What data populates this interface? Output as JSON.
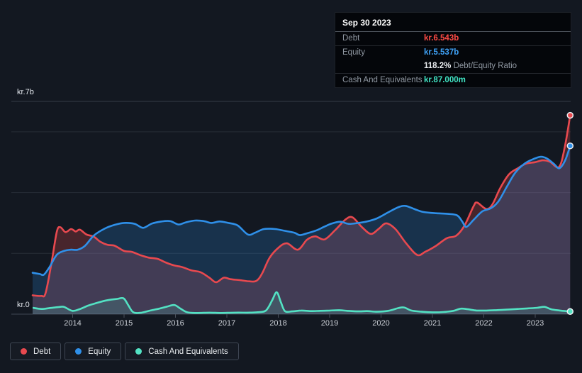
{
  "tooltip": {
    "date": "Sep 30 2023",
    "debt_label": "Debt",
    "debt_value": "kr.6.543b",
    "debt_color": "#ff4b45",
    "equity_label": "Equity",
    "equity_value": "kr.5.537b",
    "equity_color": "#3fa2f7",
    "ratio_pct": "118.2%",
    "ratio_text": "Debt/Equity Ratio",
    "cash_label": "Cash And Equivalents",
    "cash_value": "kr.87.000m",
    "cash_color": "#40e2c2"
  },
  "axis": {
    "y_top": "kr.7b",
    "y_bottom": "kr.0"
  },
  "legend": {
    "items": [
      {
        "label": "Debt",
        "color": "#e8494f"
      },
      {
        "label": "Equity",
        "color": "#2f90e9"
      },
      {
        "label": "Cash And Equivalents",
        "color": "#53e2c3"
      }
    ]
  },
  "chart_data": {
    "type": "area",
    "x_unit": "decimal_year",
    "xlim": [
      2013.0,
      2023.9
    ],
    "ylim": [
      0,
      7
    ],
    "y_unit": "kr billions",
    "gridlines": {
      "values": [
        7,
        6,
        4,
        2,
        0
      ]
    },
    "x_ticks": [
      2014,
      2015,
      2016,
      2017,
      2018,
      2019,
      2020,
      2021,
      2022,
      2023
    ],
    "series": [
      {
        "id": "debt",
        "name": "Debt",
        "color": "#e8494f",
        "fill": "rgba(231,74,80,0.25)",
        "last_label": "kr.6.543b",
        "points": [
          [
            2013.22,
            0.62
          ],
          [
            2013.39,
            0.6
          ],
          [
            2013.47,
            0.68
          ],
          [
            2013.58,
            1.6
          ],
          [
            2013.69,
            2.7
          ],
          [
            2013.76,
            2.86
          ],
          [
            2013.86,
            2.7
          ],
          [
            2013.97,
            2.8
          ],
          [
            2014.06,
            2.72
          ],
          [
            2014.14,
            2.78
          ],
          [
            2014.27,
            2.62
          ],
          [
            2014.41,
            2.55
          ],
          [
            2014.54,
            2.38
          ],
          [
            2014.68,
            2.28
          ],
          [
            2014.82,
            2.25
          ],
          [
            2015.0,
            2.08
          ],
          [
            2015.15,
            2.05
          ],
          [
            2015.32,
            1.94
          ],
          [
            2015.48,
            1.86
          ],
          [
            2015.65,
            1.82
          ],
          [
            2015.81,
            1.7
          ],
          [
            2015.98,
            1.6
          ],
          [
            2016.13,
            1.55
          ],
          [
            2016.31,
            1.44
          ],
          [
            2016.49,
            1.38
          ],
          [
            2016.66,
            1.2
          ],
          [
            2016.79,
            1.05
          ],
          [
            2016.94,
            1.2
          ],
          [
            2017.07,
            1.15
          ],
          [
            2017.25,
            1.12
          ],
          [
            2017.44,
            1.08
          ],
          [
            2017.58,
            1.1
          ],
          [
            2017.69,
            1.35
          ],
          [
            2017.83,
            1.85
          ],
          [
            2018.0,
            2.18
          ],
          [
            2018.17,
            2.33
          ],
          [
            2018.38,
            2.12
          ],
          [
            2018.56,
            2.45
          ],
          [
            2018.72,
            2.56
          ],
          [
            2018.9,
            2.46
          ],
          [
            2019.1,
            2.75
          ],
          [
            2019.3,
            3.1
          ],
          [
            2019.44,
            3.19
          ],
          [
            2019.62,
            2.88
          ],
          [
            2019.8,
            2.64
          ],
          [
            2019.95,
            2.8
          ],
          [
            2020.1,
            2.99
          ],
          [
            2020.28,
            2.8
          ],
          [
            2020.48,
            2.35
          ],
          [
            2020.7,
            1.95
          ],
          [
            2020.86,
            2.05
          ],
          [
            2021.07,
            2.25
          ],
          [
            2021.28,
            2.5
          ],
          [
            2021.46,
            2.58
          ],
          [
            2021.62,
            2.9
          ],
          [
            2021.8,
            3.55
          ],
          [
            2021.87,
            3.67
          ],
          [
            2022.05,
            3.46
          ],
          [
            2022.17,
            3.62
          ],
          [
            2022.32,
            4.15
          ],
          [
            2022.49,
            4.6
          ],
          [
            2022.66,
            4.8
          ],
          [
            2022.82,
            4.95
          ],
          [
            2023.0,
            5.0
          ],
          [
            2023.14,
            5.06
          ],
          [
            2023.28,
            5.02
          ],
          [
            2023.46,
            4.84
          ],
          [
            2023.57,
            5.45
          ],
          [
            2023.68,
            6.543
          ]
        ]
      },
      {
        "id": "equity",
        "name": "Equity",
        "color": "#2f90e9",
        "fill": "rgba(47,144,233,0.22)",
        "last_label": "kr.5.537b",
        "points": [
          [
            2013.22,
            1.36
          ],
          [
            2013.36,
            1.32
          ],
          [
            2013.44,
            1.3
          ],
          [
            2013.55,
            1.55
          ],
          [
            2013.69,
            1.95
          ],
          [
            2013.83,
            2.08
          ],
          [
            2013.97,
            2.12
          ],
          [
            2014.1,
            2.12
          ],
          [
            2014.24,
            2.25
          ],
          [
            2014.42,
            2.6
          ],
          [
            2014.63,
            2.82
          ],
          [
            2014.82,
            2.94
          ],
          [
            2015.0,
            3.0
          ],
          [
            2015.21,
            2.97
          ],
          [
            2015.37,
            2.84
          ],
          [
            2015.54,
            2.98
          ],
          [
            2015.73,
            3.05
          ],
          [
            2015.9,
            3.06
          ],
          [
            2016.06,
            2.95
          ],
          [
            2016.2,
            3.02
          ],
          [
            2016.38,
            3.08
          ],
          [
            2016.56,
            3.06
          ],
          [
            2016.7,
            3.0
          ],
          [
            2016.86,
            3.05
          ],
          [
            2017.03,
            3.0
          ],
          [
            2017.21,
            2.92
          ],
          [
            2017.41,
            2.62
          ],
          [
            2017.55,
            2.68
          ],
          [
            2017.72,
            2.8
          ],
          [
            2017.94,
            2.8
          ],
          [
            2018.1,
            2.75
          ],
          [
            2018.31,
            2.68
          ],
          [
            2018.42,
            2.6
          ],
          [
            2018.56,
            2.66
          ],
          [
            2018.75,
            2.76
          ],
          [
            2018.9,
            2.88
          ],
          [
            2019.04,
            2.98
          ],
          [
            2019.21,
            3.04
          ],
          [
            2019.37,
            2.97
          ],
          [
            2019.55,
            3.0
          ],
          [
            2019.73,
            3.05
          ],
          [
            2019.92,
            3.15
          ],
          [
            2020.14,
            3.35
          ],
          [
            2020.34,
            3.52
          ],
          [
            2020.48,
            3.56
          ],
          [
            2020.66,
            3.45
          ],
          [
            2020.83,
            3.36
          ],
          [
            2021.07,
            3.32
          ],
          [
            2021.3,
            3.3
          ],
          [
            2021.48,
            3.25
          ],
          [
            2021.58,
            3.05
          ],
          [
            2021.66,
            2.87
          ],
          [
            2021.8,
            3.1
          ],
          [
            2021.97,
            3.38
          ],
          [
            2022.13,
            3.48
          ],
          [
            2022.28,
            3.7
          ],
          [
            2022.45,
            4.2
          ],
          [
            2022.61,
            4.65
          ],
          [
            2022.79,
            4.95
          ],
          [
            2022.96,
            5.1
          ],
          [
            2023.11,
            5.18
          ],
          [
            2023.23,
            5.12
          ],
          [
            2023.36,
            4.95
          ],
          [
            2023.47,
            4.8
          ],
          [
            2023.58,
            5.05
          ],
          [
            2023.68,
            5.537
          ]
        ]
      },
      {
        "id": "cash",
        "name": "Cash And Equivalents",
        "color": "#53e2c3",
        "fill": "rgba(83,226,195,0.15)",
        "last_label": "kr.87.000m",
        "points": [
          [
            2013.22,
            0.21
          ],
          [
            2013.39,
            0.17
          ],
          [
            2013.55,
            0.2
          ],
          [
            2013.72,
            0.23
          ],
          [
            2013.83,
            0.24
          ],
          [
            2013.99,
            0.11
          ],
          [
            2014.13,
            0.16
          ],
          [
            2014.3,
            0.28
          ],
          [
            2014.49,
            0.38
          ],
          [
            2014.68,
            0.46
          ],
          [
            2014.86,
            0.5
          ],
          [
            2014.99,
            0.52
          ],
          [
            2015.08,
            0.3
          ],
          [
            2015.18,
            0.06
          ],
          [
            2015.34,
            0.05
          ],
          [
            2015.51,
            0.12
          ],
          [
            2015.68,
            0.18
          ],
          [
            2015.84,
            0.25
          ],
          [
            2015.98,
            0.3
          ],
          [
            2016.1,
            0.18
          ],
          [
            2016.23,
            0.06
          ],
          [
            2016.42,
            0.04
          ],
          [
            2016.66,
            0.05
          ],
          [
            2016.89,
            0.04
          ],
          [
            2017.14,
            0.05
          ],
          [
            2017.39,
            0.05
          ],
          [
            2017.58,
            0.06
          ],
          [
            2017.76,
            0.12
          ],
          [
            2017.88,
            0.45
          ],
          [
            2017.97,
            0.72
          ],
          [
            2018.05,
            0.4
          ],
          [
            2018.13,
            0.1
          ],
          [
            2018.27,
            0.09
          ],
          [
            2018.45,
            0.12
          ],
          [
            2018.63,
            0.1
          ],
          [
            2018.82,
            0.11
          ],
          [
            2019.0,
            0.12
          ],
          [
            2019.18,
            0.13
          ],
          [
            2019.34,
            0.11
          ],
          [
            2019.55,
            0.09
          ],
          [
            2019.73,
            0.1
          ],
          [
            2019.92,
            0.08
          ],
          [
            2020.14,
            0.11
          ],
          [
            2020.34,
            0.2
          ],
          [
            2020.45,
            0.22
          ],
          [
            2020.59,
            0.12
          ],
          [
            2020.79,
            0.08
          ],
          [
            2021.0,
            0.06
          ],
          [
            2021.21,
            0.07
          ],
          [
            2021.41,
            0.11
          ],
          [
            2021.55,
            0.18
          ],
          [
            2021.69,
            0.16
          ],
          [
            2021.86,
            0.12
          ],
          [
            2022.05,
            0.12
          ],
          [
            2022.24,
            0.13
          ],
          [
            2022.45,
            0.15
          ],
          [
            2022.66,
            0.17
          ],
          [
            2022.85,
            0.19
          ],
          [
            2023.04,
            0.21
          ],
          [
            2023.18,
            0.24
          ],
          [
            2023.31,
            0.16
          ],
          [
            2023.48,
            0.12
          ],
          [
            2023.68,
            0.087
          ]
        ]
      }
    ]
  }
}
